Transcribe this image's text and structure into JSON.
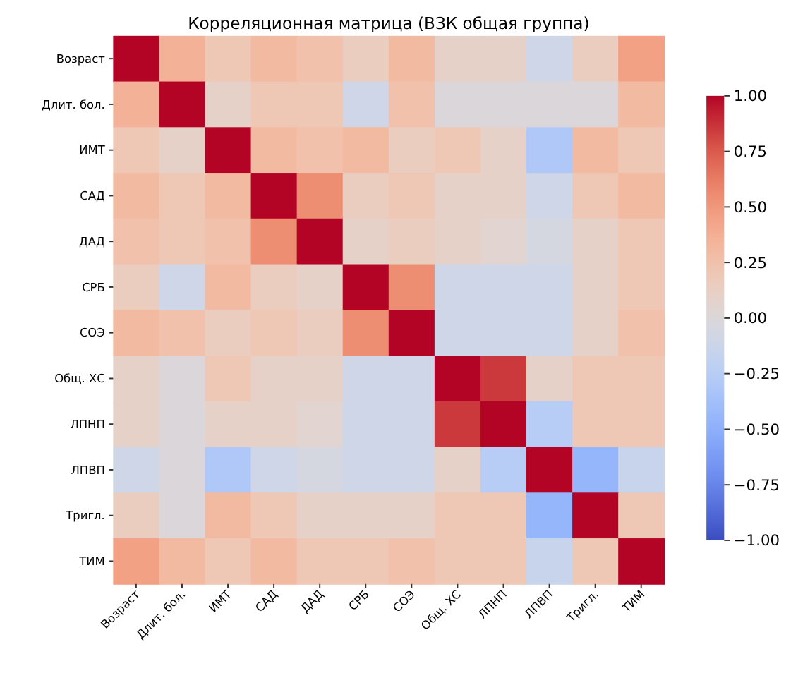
{
  "chart_data": {
    "type": "heatmap",
    "title": "Корреляционная матрица (ВЗК общая группа)",
    "categories": [
      "Возраст",
      "Длит. бол.",
      "ИМТ",
      "САД",
      "ДАД",
      "СРБ",
      "СОЭ",
      "Общ. ХС",
      "ЛПНП",
      "ЛПВП",
      "Тригл.",
      "ТИМ"
    ],
    "y_categories": [
      "Возраст",
      "Длит. бол.",
      "ИМТ",
      "САД",
      "ДАД",
      "СРБ",
      "СОЭ",
      "Общ. ХС",
      "ЛПНП",
      "ЛПВП",
      "Тригл.",
      "ТИМ"
    ],
    "cells": [
      [
        1,
        0.35,
        0.2,
        0.3,
        0.25,
        0.15,
        0.3,
        0.1,
        0.1,
        -0.1,
        0.15,
        0.45
      ],
      [
        0.35,
        1,
        0.1,
        0.2,
        0.2,
        -0.1,
        0.25,
        0,
        0,
        0,
        0,
        0.3
      ],
      [
        0.2,
        0.1,
        1,
        0.3,
        0.25,
        0.3,
        0.15,
        0.2,
        0.1,
        -0.3,
        0.3,
        0.2
      ],
      [
        0.3,
        0.2,
        0.3,
        1,
        0.55,
        0.15,
        0.2,
        0.1,
        0.1,
        -0.1,
        0.2,
        0.3
      ],
      [
        0.25,
        0.2,
        0.25,
        0.55,
        1,
        0.1,
        0.15,
        0.1,
        0.05,
        -0.05,
        0.1,
        0.2
      ],
      [
        0.15,
        -0.1,
        0.3,
        0.15,
        0.1,
        1,
        0.55,
        -0.1,
        -0.1,
        -0.1,
        0.1,
        0.2
      ],
      [
        0.3,
        0.25,
        0.15,
        0.2,
        0.15,
        0.55,
        1,
        -0.1,
        -0.1,
        -0.1,
        0.1,
        0.25
      ],
      [
        0.1,
        0,
        0.2,
        0.1,
        0.1,
        -0.1,
        -0.1,
        1,
        0.85,
        0.1,
        0.2,
        0.2
      ],
      [
        0.1,
        0,
        0.1,
        0.1,
        0.05,
        -0.1,
        -0.1,
        0.85,
        1,
        -0.25,
        0.2,
        0.2
      ],
      [
        -0.1,
        0,
        -0.3,
        -0.1,
        -0.05,
        -0.1,
        -0.1,
        0.1,
        -0.25,
        1,
        -0.45,
        -0.15
      ],
      [
        0.15,
        0,
        0.3,
        0.2,
        0.1,
        0.1,
        0.1,
        0.2,
        0.2,
        -0.45,
        1,
        0.2
      ],
      [
        0.45,
        0.3,
        0.2,
        0.3,
        0.2,
        0.2,
        0.25,
        0.2,
        0.2,
        -0.15,
        0.2,
        1
      ]
    ],
    "clim": [
      -1,
      1
    ],
    "cticks": [
      {
        "value": -1,
        "label": "−1.00"
      },
      {
        "value": -0.75,
        "label": "−0.75"
      },
      {
        "value": -0.5,
        "label": "−0.50"
      },
      {
        "value": -0.25,
        "label": "−0.25"
      },
      {
        "value": 0,
        "label": "0.00"
      },
      {
        "value": 0.25,
        "label": "0.25"
      },
      {
        "value": 0.5,
        "label": "0.50"
      },
      {
        "value": 0.75,
        "label": "0.75"
      },
      {
        "value": 1,
        "label": "1.00"
      }
    ]
  }
}
